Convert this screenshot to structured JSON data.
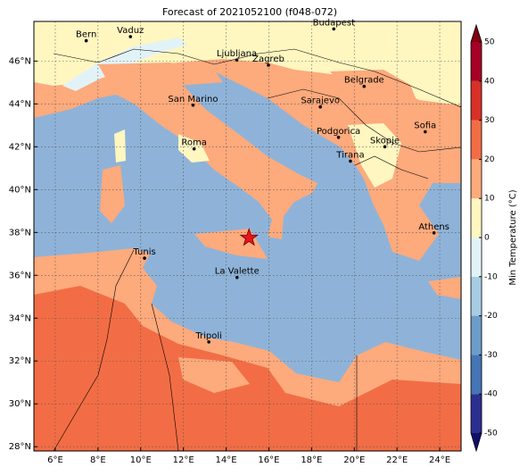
{
  "title": "Forecast of 2021052100 (f048-072)",
  "xlim": [
    5,
    25
  ],
  "ylim": [
    27.8,
    47.85
  ],
  "lon_ticks": [
    {
      "value": 6,
      "label": "6°E"
    },
    {
      "value": 8,
      "label": "8°E"
    },
    {
      "value": 10,
      "label": "10°E"
    },
    {
      "value": 12,
      "label": "12°E"
    },
    {
      "value": 14,
      "label": "14°E"
    },
    {
      "value": 16,
      "label": "16°E"
    },
    {
      "value": 18,
      "label": "18°E"
    },
    {
      "value": 20,
      "label": "20°E"
    },
    {
      "value": 22,
      "label": "22°E"
    },
    {
      "value": 24,
      "label": "24°E"
    }
  ],
  "lat_ticks": [
    {
      "value": 28,
      "label": "28°N"
    },
    {
      "value": 30,
      "label": "30°N"
    },
    {
      "value": 32,
      "label": "32°N"
    },
    {
      "value": 34,
      "label": "34°N"
    },
    {
      "value": 36,
      "label": "36°N"
    },
    {
      "value": 38,
      "label": "38°N"
    },
    {
      "value": 40,
      "label": "40°N"
    },
    {
      "value": 42,
      "label": "42°N"
    },
    {
      "value": 44,
      "label": "44°N"
    },
    {
      "value": 46,
      "label": "46°N"
    }
  ],
  "cities": [
    {
      "name": "Bern",
      "lon": 7.45,
      "lat": 46.95
    },
    {
      "name": "Vaduz",
      "lon": 9.52,
      "lat": 47.14
    },
    {
      "name": "Budapest",
      "lon": 19.04,
      "lat": 47.5
    },
    {
      "name": "Ljubljana",
      "lon": 14.5,
      "lat": 46.05
    },
    {
      "name": "Zagreb",
      "lon": 15.98,
      "lat": 45.81
    },
    {
      "name": "Belgrade",
      "lon": 20.46,
      "lat": 44.82
    },
    {
      "name": "Sarajevo",
      "lon": 18.41,
      "lat": 43.86
    },
    {
      "name": "San Marino",
      "lon": 12.45,
      "lat": 43.94
    },
    {
      "name": "Podgorica",
      "lon": 19.26,
      "lat": 42.44
    },
    {
      "name": "Sofia",
      "lon": 23.32,
      "lat": 42.7
    },
    {
      "name": "Skopje",
      "lon": 21.43,
      "lat": 42.0
    },
    {
      "name": "Roma",
      "lon": 12.5,
      "lat": 41.9
    },
    {
      "name": "Tirana",
      "lon": 19.82,
      "lat": 41.33
    },
    {
      "name": "Athens",
      "lon": 23.73,
      "lat": 37.98
    },
    {
      "name": "Tunis",
      "lon": 10.18,
      "lat": 36.8
    },
    {
      "name": "La Valette",
      "lon": 14.51,
      "lat": 35.9
    },
    {
      "name": "Tripoli",
      "lon": 13.19,
      "lat": 32.89
    }
  ],
  "marker": {
    "lon": 15.07,
    "lat": 37.75,
    "color": "#e8141c"
  },
  "colorbar": {
    "label": "Min Temperature (°C)",
    "lim": [
      -50,
      50
    ],
    "ticks": [
      -50,
      -40,
      -30,
      -20,
      -10,
      0,
      10,
      20,
      30,
      40,
      50
    ],
    "colors": [
      "#2b2f8f",
      "#4575b4",
      "#6d9cc9",
      "#a6cde3",
      "#e2f3f8",
      "#fff6c0",
      "#fdaa7c",
      "#f26d45",
      "#d73027",
      "#a50026"
    ],
    "under": "#10106a",
    "over": "#7f0010"
  }
}
